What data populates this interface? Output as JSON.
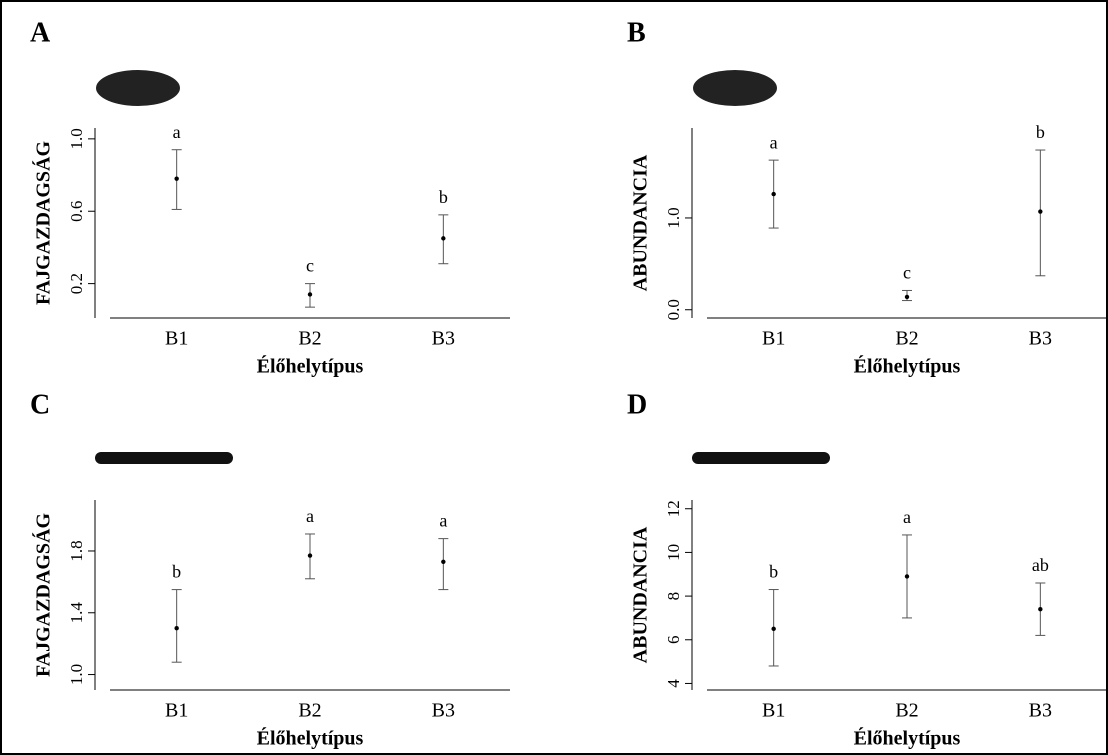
{
  "chart_data": [
    {
      "type": "errorbar",
      "title": "A",
      "ylabel": "FAJGAZDAGSÁG",
      "xlabel": "Élőhelytípus",
      "categories": [
        "B1",
        "B2",
        "B3"
      ],
      "values": [
        0.78,
        0.14,
        0.45
      ],
      "lower": [
        0.61,
        0.07,
        0.31
      ],
      "upper": [
        0.94,
        0.2,
        0.58
      ],
      "letters": [
        "a",
        "c",
        "b"
      ],
      "ylim": [
        0.01,
        1.06
      ],
      "yticks": [
        0.2,
        0.6,
        {
          "value": 1.0,
          "label": "1.0"
        }
      ]
    },
    {
      "type": "errorbar",
      "title": "B",
      "ylabel": "ABUNDANCIA",
      "xlabel": "Élőhelytípus",
      "categories": [
        "B1",
        "B2",
        "B3"
      ],
      "values": [
        1.26,
        0.14,
        1.07
      ],
      "lower": [
        0.89,
        0.1,
        0.37
      ],
      "upper": [
        1.63,
        0.21,
        1.74
      ],
      "letters": [
        "a",
        "c",
        "b"
      ],
      "ylim": [
        -0.09,
        1.98
      ],
      "yticks": [
        {
          "value": 0.0,
          "label": "0.0"
        },
        {
          "value": 1.0,
          "label": "1.0"
        }
      ]
    },
    {
      "type": "errorbar",
      "title": "C",
      "ylabel": "FAJGAZDAGSÁG",
      "xlabel": "Élőhelytípus",
      "categories": [
        "B1",
        "B2",
        "B3"
      ],
      "values": [
        1.3,
        1.77,
        1.73
      ],
      "lower": [
        1.08,
        1.62,
        1.55
      ],
      "upper": [
        1.55,
        1.91,
        1.88
      ],
      "letters": [
        "b",
        "a",
        "a"
      ],
      "ylim": [
        0.9,
        2.13
      ],
      "yticks": [
        {
          "value": 1.0,
          "label": "1.0"
        },
        1.4,
        1.8
      ]
    },
    {
      "type": "errorbar",
      "title": "D",
      "ylabel": "ABUNDANCIA",
      "xlabel": "Élőhelytípus",
      "categories": [
        "B1",
        "B2",
        "B3"
      ],
      "values": [
        6.5,
        8.9,
        7.4
      ],
      "lower": [
        4.8,
        7.0,
        6.2
      ],
      "upper": [
        8.3,
        10.8,
        8.6
      ],
      "letters": [
        "b",
        "a",
        "ab"
      ],
      "ylim": [
        3.7,
        12.4
      ],
      "yticks": [
        4,
        6,
        8,
        10,
        12
      ]
    }
  ]
}
